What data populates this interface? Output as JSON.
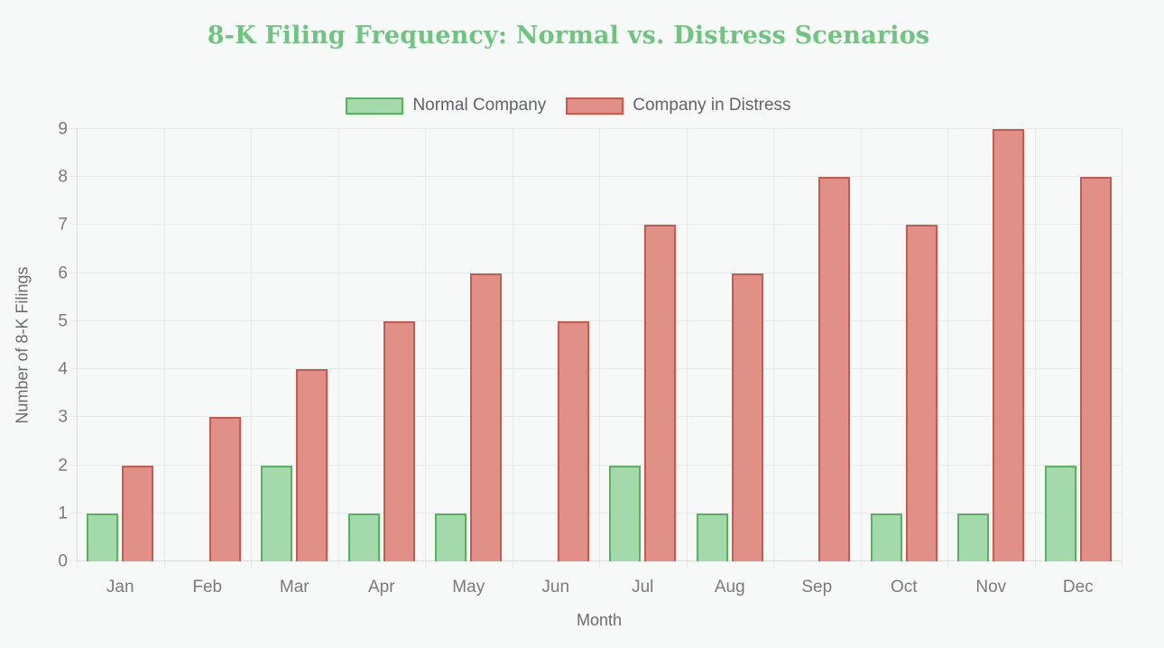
{
  "page": {
    "background": "#F7F9F8"
  },
  "chart_data": {
    "type": "bar",
    "title": "8-K Filing Frequency: Normal vs. Distress Scenarios",
    "title_color": "#6FC47F",
    "categories": [
      "Jan",
      "Feb",
      "Mar",
      "Apr",
      "May",
      "Jun",
      "Jul",
      "Aug",
      "Sep",
      "Oct",
      "Nov",
      "Dec"
    ],
    "series": [
      {
        "name": "Normal Company",
        "values": [
          1,
          0,
          2,
          1,
          1,
          0,
          2,
          1,
          0,
          1,
          1,
          2
        ],
        "fill_color": "#A3D9AB",
        "border_color": "#57B25C"
      },
      {
        "name": "Company in Distress",
        "values": [
          2,
          3,
          4,
          5,
          6,
          5,
          7,
          6,
          8,
          7,
          9,
          8
        ],
        "fill_color": "#E19087",
        "border_color": "#CC584C"
      }
    ],
    "xlabel": "Month",
    "ylabel": "Number of 8-K Filings",
    "ylim": [
      0,
      9
    ],
    "yticks": [
      0,
      1,
      2,
      3,
      4,
      5,
      6,
      7,
      8,
      9
    ],
    "grid": true,
    "legend_position": "top",
    "axis_tick_text_color": "#7A7A7A",
    "axis_title_text_color": "#6B6B6B",
    "legend_text_color": "#5F6368",
    "grid_color": "#E7EAE8",
    "axis_line_color": "#D9DCDA"
  }
}
